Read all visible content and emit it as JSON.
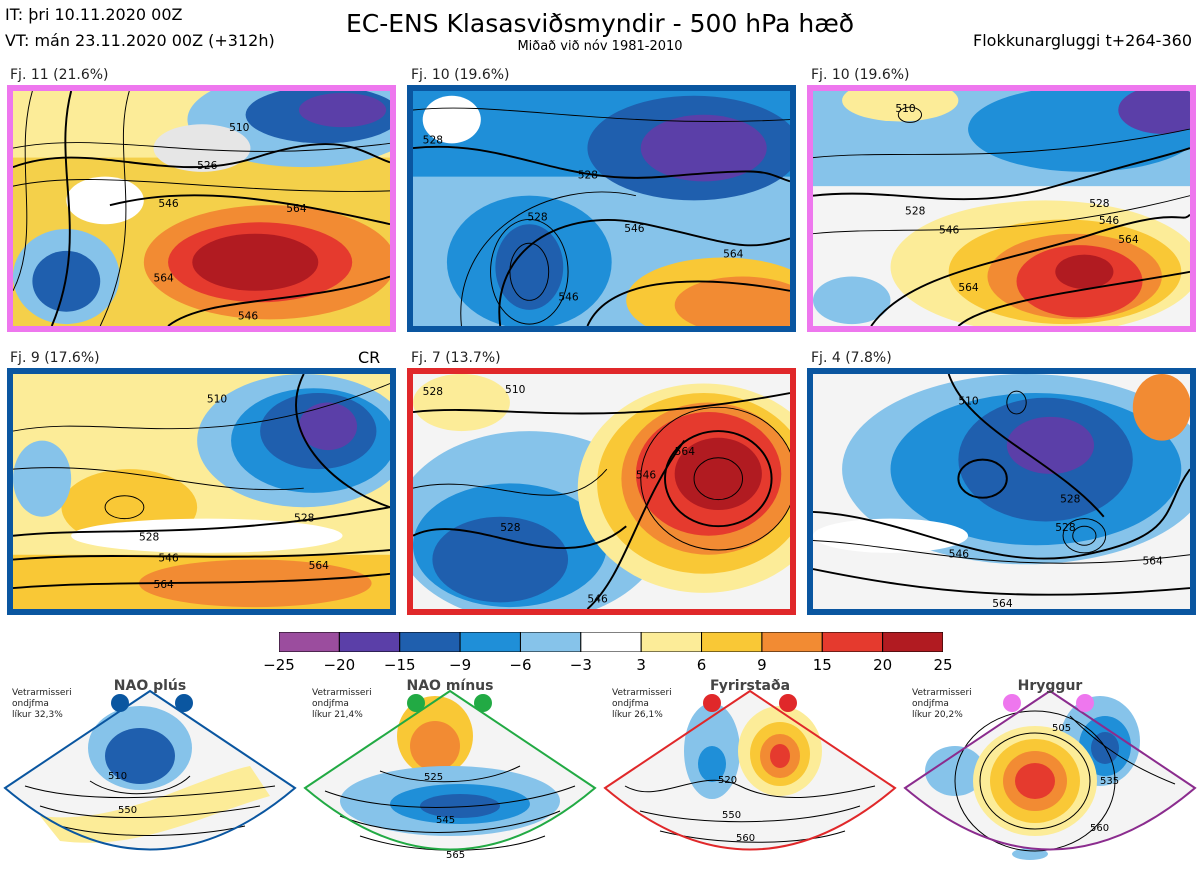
{
  "header": {
    "it": "IT: þri 10.11.2020 00Z",
    "vt": "VT: mán 23.11.2020 00Z  (+312h)",
    "title": "EC-ENS Klasasviðsmyndir - 500 hPa hæð",
    "subtitle": "Miðað við nóv 1981-2010",
    "window": "Flokkunargluggi t+264-360"
  },
  "panels": [
    {
      "label": "Fj. 11 (21.6%)",
      "border": "#ee77ee",
      "contours": [
        "510",
        "526",
        "546",
        "564",
        "564",
        "546"
      ]
    },
    {
      "label": "Fj. 10 (19.6%)",
      "border": "#0a56a0",
      "contours": [
        "528",
        "528",
        "546",
        "564",
        "546"
      ]
    },
    {
      "label": "Fj. 10 (19.6%)",
      "border": "#ee77ee",
      "contours": [
        "510",
        "528",
        "528",
        "546",
        "564",
        "564"
      ]
    },
    {
      "label": "Fj. 9 (17.6%)",
      "border": "#0a56a0",
      "contours": [
        "510",
        "528",
        "528",
        "546",
        "564"
      ]
    },
    {
      "label": "Fj. 7 (13.7%)",
      "border": "#e0282a",
      "contours": [
        "510",
        "528",
        "528",
        "546",
        "564"
      ]
    },
    {
      "label": "Fj. 4 (7.8%)",
      "border": "#0a56a0",
      "contours": [
        "510",
        "528",
        "528",
        "546",
        "564"
      ]
    }
  ],
  "cr_label": "CR",
  "colorbar": {
    "colors": [
      "#9b4d9e",
      "#5b3fa8",
      "#1f5fae",
      "#1f8fd8",
      "#86c3ea",
      "#ffffff",
      "#fcec98",
      "#f9c836",
      "#f28b33",
      "#e53a2e",
      "#b11b21"
    ],
    "ticks": [
      "−25",
      "−20",
      "−15",
      "−9",
      "−6",
      "−3",
      "3",
      "6",
      "9",
      "15",
      "20",
      "25"
    ]
  },
  "regimes": [
    {
      "name": "NAO plús",
      "note": [
        "Vetrarmisseri",
        "ondjfma",
        "líkur 32,3%"
      ],
      "color": "#0a56a0",
      "contours": [
        "510",
        "550"
      ]
    },
    {
      "name": "NAO mínus",
      "note": [
        "Vetrarmisseri",
        "ondjfma",
        "líkur 21,4%"
      ],
      "color": "#22aa44",
      "contours": [
        "525",
        "545",
        "565"
      ]
    },
    {
      "name": "Fyrirstaða",
      "note": [
        "Vetrarmisseri",
        "ondjfma",
        "líkur 26,1%"
      ],
      "color": "#e0282a",
      "contours": [
        "520",
        "550",
        "560"
      ]
    },
    {
      "name": "Hryggur",
      "note": [
        "Vetrarmisseri",
        "ondjfma",
        "líkur 20,2%"
      ],
      "color": "#8b2c8e",
      "dot": "#ee77ee",
      "contours": [
        "505",
        "535",
        "560"
      ]
    }
  ]
}
